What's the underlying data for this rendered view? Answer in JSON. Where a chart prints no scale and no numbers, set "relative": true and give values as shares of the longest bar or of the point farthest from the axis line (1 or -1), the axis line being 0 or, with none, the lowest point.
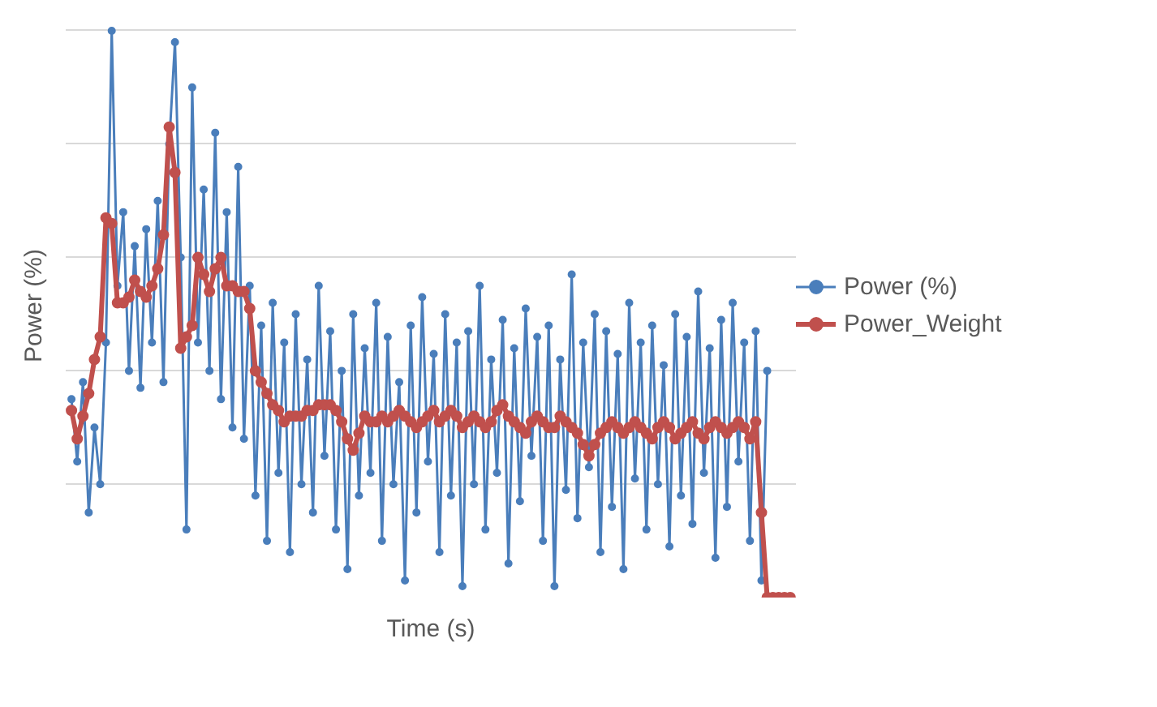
{
  "chart_data": {
    "type": "line",
    "xlabel": "Time (s)",
    "ylabel": "Power (%)",
    "relative": true,
    "grid": "y",
    "legend": "right",
    "marker": "circle",
    "line_style": "solid",
    "categories": [
      null,
      null,
      null,
      null,
      null,
      null,
      null,
      null,
      null,
      null,
      null,
      null,
      null,
      null,
      null,
      null,
      null,
      null,
      null,
      null,
      null,
      null,
      null,
      null,
      null,
      null,
      null,
      null,
      null,
      null,
      null,
      null,
      null,
      null,
      null,
      null,
      null,
      null,
      null,
      null,
      null,
      null,
      null,
      null,
      null,
      null,
      null,
      null,
      null,
      null,
      null,
      null,
      null,
      null,
      null,
      null,
      null,
      null,
      null,
      null,
      null,
      null,
      null,
      null,
      null,
      null,
      null,
      null,
      null,
      null,
      null,
      null,
      null,
      null,
      null,
      null,
      null,
      null,
      null,
      null,
      null,
      null,
      null,
      null,
      null,
      null,
      null,
      null,
      null,
      null,
      null,
      null,
      null,
      null,
      null,
      null,
      null,
      null,
      null,
      null,
      null,
      null,
      null,
      null,
      null,
      null,
      null,
      null,
      null,
      null,
      null,
      null,
      null,
      null,
      null,
      null,
      null,
      null,
      null,
      null,
      null,
      null,
      null,
      null,
      null,
      null
    ],
    "series": [
      {
        "name": "Power (%)",
        "color": "#4a7ebb",
        "values": [
          0.35,
          0.24,
          0.38,
          0.15,
          0.3,
          0.2,
          0.45,
          1.0,
          0.55,
          0.68,
          0.4,
          0.62,
          0.37,
          0.65,
          0.45,
          0.7,
          0.38,
          0.8,
          0.98,
          0.6,
          0.12,
          0.9,
          0.45,
          0.72,
          0.4,
          0.82,
          0.35,
          0.68,
          0.3,
          0.76,
          0.28,
          0.55,
          0.18,
          0.48,
          0.1,
          0.52,
          0.22,
          0.45,
          0.08,
          0.5,
          0.2,
          0.42,
          0.15,
          0.55,
          0.25,
          0.47,
          0.12,
          0.4,
          0.05,
          0.5,
          0.18,
          0.44,
          0.22,
          0.52,
          0.1,
          0.46,
          0.2,
          0.38,
          0.03,
          0.48,
          0.15,
          0.53,
          0.24,
          0.43,
          0.08,
          0.5,
          0.18,
          0.45,
          0.02,
          0.47,
          0.2,
          0.55,
          0.12,
          0.42,
          0.22,
          0.49,
          0.06,
          0.44,
          0.17,
          0.51,
          0.25,
          0.46,
          0.1,
          0.48,
          0.02,
          0.42,
          0.19,
          0.57,
          0.14,
          0.45,
          0.23,
          0.5,
          0.08,
          0.47,
          0.16,
          0.43,
          0.05,
          0.52,
          0.21,
          0.45,
          0.12,
          0.48,
          0.2,
          0.41,
          0.09,
          0.5,
          0.18,
          0.46,
          0.13,
          0.54,
          0.22,
          0.44,
          0.07,
          0.49,
          0.16,
          0.52,
          0.24,
          0.45,
          0.1,
          0.47,
          0.03,
          0.4,
          null,
          null,
          null,
          null
        ]
      },
      {
        "name": "Power_Weight",
        "color": "#c0504d",
        "values": [
          0.33,
          0.28,
          0.32,
          0.36,
          0.42,
          0.46,
          0.67,
          0.66,
          0.52,
          0.52,
          0.53,
          0.56,
          0.54,
          0.53,
          0.55,
          0.58,
          0.64,
          0.83,
          0.75,
          0.44,
          0.46,
          0.48,
          0.6,
          0.57,
          0.54,
          0.58,
          0.6,
          0.55,
          0.55,
          0.54,
          0.54,
          0.51,
          0.4,
          0.38,
          0.36,
          0.34,
          0.33,
          0.31,
          0.32,
          0.32,
          0.32,
          0.33,
          0.33,
          0.34,
          0.34,
          0.34,
          0.33,
          0.31,
          0.28,
          0.26,
          0.29,
          0.32,
          0.31,
          0.31,
          0.32,
          0.31,
          0.32,
          0.33,
          0.32,
          0.31,
          0.3,
          0.31,
          0.32,
          0.33,
          0.31,
          0.32,
          0.33,
          0.32,
          0.3,
          0.31,
          0.32,
          0.31,
          0.3,
          0.31,
          0.33,
          0.34,
          0.32,
          0.31,
          0.3,
          0.29,
          0.31,
          0.32,
          0.31,
          0.3,
          0.3,
          0.32,
          0.31,
          0.3,
          0.29,
          0.27,
          0.25,
          0.27,
          0.29,
          0.3,
          0.31,
          0.3,
          0.29,
          0.3,
          0.31,
          0.3,
          0.29,
          0.28,
          0.3,
          0.31,
          0.3,
          0.28,
          0.29,
          0.3,
          0.31,
          0.29,
          0.28,
          0.3,
          0.31,
          0.3,
          0.29,
          0.3,
          0.31,
          0.3,
          0.28,
          0.31,
          0.15,
          0,
          0,
          0,
          0,
          0
        ]
      }
    ]
  }
}
